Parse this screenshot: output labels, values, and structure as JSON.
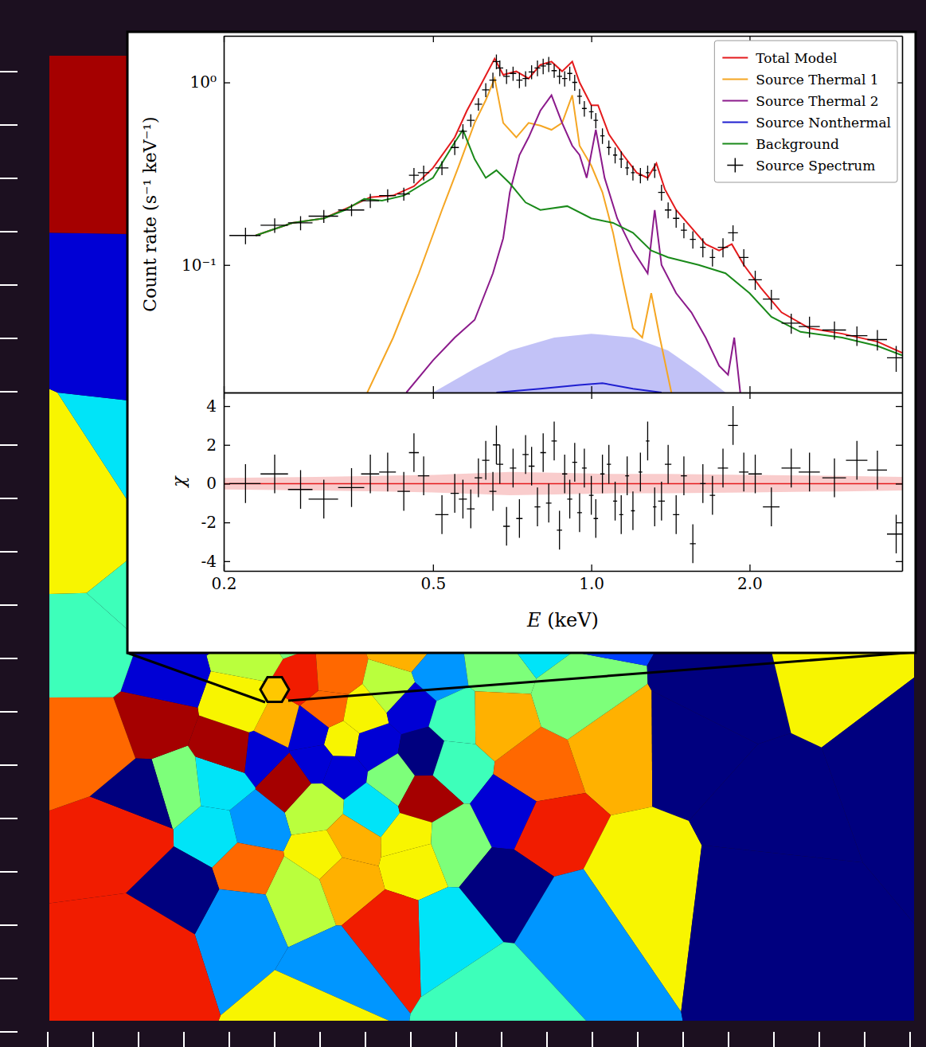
{
  "chart_data": [
    {
      "type": "line",
      "y_label": "Count rate (s⁻¹ keV⁻¹)",
      "log": true,
      "xlim": [
        0.2,
        3.9
      ],
      "ylim": [
        0.02,
        1.8
      ],
      "xticks": [
        0.2,
        0.5,
        {
          "value": 1,
          "label": "1.0"
        },
        {
          "value": 2,
          "label": "2.0"
        }
      ],
      "yticks": [
        {
          "value": 0.1,
          "label": "10⁻¹"
        },
        {
          "value": 1,
          "label": "10⁰"
        }
      ],
      "tick_labels": "y",
      "legend": "upper right",
      "series": [
        {
          "type": "area",
          "color": "#8f8ff0",
          "x": [
            0.5,
            0.6,
            0.7,
            0.85,
            1.0,
            1.2,
            1.4,
            1.6,
            1.8
          ],
          "lower": [
            0.012,
            0.012,
            0.012,
            0.012,
            0.012,
            0.012,
            0.012,
            0.012,
            0.012
          ],
          "upper": [
            0.02,
            0.027,
            0.034,
            0.04,
            0.042,
            0.04,
            0.034,
            0.026,
            0.02
          ]
        },
        {
          "name": "Total Model",
          "type": "line",
          "color": "#e41a1c",
          "x": [
            0.23,
            0.27,
            0.31,
            0.35,
            0.38,
            0.42,
            0.46,
            0.5,
            0.55,
            0.58,
            0.62,
            0.655,
            0.68,
            0.72,
            0.76,
            0.8,
            0.84,
            0.88,
            0.92,
            0.95,
            1.0,
            1.03,
            1.08,
            1.15,
            1.22,
            1.28,
            1.33,
            1.38,
            1.45,
            1.55,
            1.65,
            1.75,
            1.85,
            1.95,
            2.1,
            2.3,
            2.6,
            3.0,
            3.5,
            3.9
          ],
          "values": [
            0.145,
            0.17,
            0.18,
            0.21,
            0.235,
            0.24,
            0.27,
            0.34,
            0.5,
            0.7,
            1.0,
            1.35,
            1.1,
            1.15,
            1.05,
            1.25,
            1.3,
            1.15,
            1.3,
            1.0,
            0.75,
            0.75,
            0.52,
            0.4,
            0.32,
            0.3,
            0.36,
            0.26,
            0.2,
            0.16,
            0.13,
            0.12,
            0.13,
            0.1,
            0.075,
            0.055,
            0.045,
            0.042,
            0.038,
            0.033
          ]
        },
        {
          "name": "Source Thermal 1",
          "type": "line",
          "color": "#f5a623",
          "x": [
            0.375,
            0.42,
            0.47,
            0.52,
            0.56,
            0.6,
            0.63,
            0.655,
            0.68,
            0.72,
            0.76,
            0.8,
            0.84,
            0.88,
            0.92,
            0.95,
            1.0,
            1.05,
            1.1,
            1.15,
            1.2,
            1.25,
            1.3,
            1.35,
            1.42
          ],
          "values": [
            0.02,
            0.04,
            0.09,
            0.2,
            0.35,
            0.6,
            0.8,
            1.05,
            0.6,
            0.5,
            0.6,
            0.58,
            0.55,
            0.6,
            0.85,
            0.45,
            0.35,
            0.25,
            0.15,
            0.08,
            0.045,
            0.04,
            0.07,
            0.04,
            0.02
          ]
        },
        {
          "name": "Source Thermal 2",
          "type": "line",
          "color": "#8b1a8b",
          "x": [
            0.445,
            0.5,
            0.55,
            0.6,
            0.65,
            0.68,
            0.7,
            0.73,
            0.76,
            0.8,
            0.84,
            0.88,
            0.92,
            0.95,
            0.98,
            1.02,
            1.06,
            1.12,
            1.2,
            1.28,
            1.32,
            1.36,
            1.45,
            1.55,
            1.65,
            1.75,
            1.82,
            1.87,
            1.92
          ],
          "values": [
            0.02,
            0.03,
            0.04,
            0.05,
            0.09,
            0.14,
            0.25,
            0.4,
            0.5,
            0.7,
            0.85,
            0.6,
            0.45,
            0.4,
            0.3,
            0.55,
            0.3,
            0.18,
            0.12,
            0.09,
            0.2,
            0.1,
            0.07,
            0.055,
            0.04,
            0.028,
            0.025,
            0.04,
            0.02
          ]
        },
        {
          "name": "Source Nonthermal",
          "type": "line",
          "color": "#1f1fd0",
          "x": [
            0.66,
            0.8,
            0.95,
            1.05,
            1.2,
            1.36
          ],
          "values": [
            0.02,
            0.021,
            0.022,
            0.0225,
            0.021,
            0.02
          ]
        },
        {
          "name": "Background",
          "type": "line",
          "color": "#1a8a1a",
          "x": [
            0.23,
            0.27,
            0.31,
            0.34,
            0.37,
            0.4,
            0.44,
            0.5,
            0.55,
            0.57,
            0.6,
            0.63,
            0.66,
            0.7,
            0.75,
            0.8,
            0.9,
            1.0,
            1.1,
            1.2,
            1.3,
            1.4,
            1.6,
            1.8,
            2.0,
            2.2,
            2.5,
            3.0,
            3.5,
            3.9
          ],
          "values": [
            0.145,
            0.17,
            0.18,
            0.2,
            0.23,
            0.225,
            0.24,
            0.3,
            0.47,
            0.55,
            0.38,
            0.3,
            0.33,
            0.28,
            0.22,
            0.2,
            0.21,
            0.18,
            0.17,
            0.15,
            0.12,
            0.11,
            0.1,
            0.09,
            0.07,
            0.052,
            0.043,
            0.04,
            0.036,
            0.032
          ]
        },
        {
          "name": "Source Spectrum",
          "type": "scatter",
          "color": "#000000",
          "marker": "plus",
          "x": [
            0.22,
            0.25,
            0.28,
            0.31,
            0.35,
            0.38,
            0.41,
            0.44,
            0.46,
            0.48,
            0.52,
            0.55,
            0.57,
            0.59,
            0.61,
            0.63,
            0.65,
            0.66,
            0.67,
            0.69,
            0.71,
            0.73,
            0.75,
            0.77,
            0.79,
            0.81,
            0.83,
            0.85,
            0.87,
            0.89,
            0.91,
            0.93,
            0.95,
            0.97,
            1.0,
            1.02,
            1.05,
            1.08,
            1.11,
            1.14,
            1.17,
            1.2,
            1.24,
            1.28,
            1.32,
            1.36,
            1.4,
            1.45,
            1.5,
            1.56,
            1.63,
            1.7,
            1.78,
            1.86,
            1.95,
            2.05,
            2.2,
            2.4,
            2.6,
            2.9,
            3.2,
            3.5,
            3.8
          ],
          "values": [
            0.145,
            0.165,
            0.17,
            0.185,
            0.2,
            0.225,
            0.24,
            0.245,
            0.31,
            0.32,
            0.34,
            0.44,
            0.54,
            0.62,
            0.76,
            0.91,
            1.03,
            1.3,
            1.2,
            1.08,
            1.12,
            1.03,
            1.05,
            1.14,
            1.2,
            1.23,
            1.26,
            1.16,
            1.08,
            1.05,
            1.12,
            1.0,
            0.84,
            0.72,
            0.69,
            0.62,
            0.51,
            0.44,
            0.4,
            0.38,
            0.34,
            0.32,
            0.31,
            0.32,
            0.33,
            0.25,
            0.2,
            0.18,
            0.155,
            0.138,
            0.125,
            0.11,
            0.125,
            0.15,
            0.11,
            0.083,
            0.065,
            0.048,
            0.046,
            0.044,
            0.041,
            0.039,
            0.031
          ],
          "errors": [
            0.015,
            0.015,
            0.015,
            0.015,
            0.015,
            0.02,
            0.02,
            0.02,
            0.03,
            0.03,
            0.03,
            0.04,
            0.05,
            0.05,
            0.06,
            0.08,
            0.1,
            0.12,
            0.12,
            0.1,
            0.1,
            0.1,
            0.1,
            0.1,
            0.12,
            0.12,
            0.12,
            0.1,
            0.1,
            0.1,
            0.1,
            0.1,
            0.08,
            0.07,
            0.06,
            0.06,
            0.05,
            0.04,
            0.04,
            0.04,
            0.03,
            0.03,
            0.03,
            0.03,
            0.03,
            0.025,
            0.02,
            0.02,
            0.015,
            0.015,
            0.015,
            0.012,
            0.015,
            0.015,
            0.012,
            0.01,
            0.008,
            0.006,
            0.006,
            0.005,
            0.005,
            0.005,
            0.005
          ],
          "xerr": [
            0.015,
            0.015,
            0.015,
            0.02,
            0.02,
            0.015,
            0.015,
            0.012,
            0.01,
            0.012,
            0.015,
            0.01,
            0.01,
            0.01,
            0.01,
            0.01,
            0.01,
            0.01,
            0.01,
            0.01,
            0.01,
            0.01,
            0.01,
            0.01,
            0.01,
            0.01,
            0.01,
            0.01,
            0.01,
            0.01,
            0.01,
            0.01,
            0.01,
            0.01,
            0.01,
            0.01,
            0.01,
            0.01,
            0.01,
            0.01,
            0.01,
            0.01,
            0.01,
            0.01,
            0.01,
            0.02,
            0.02,
            0.02,
            0.02,
            0.02,
            0.02,
            0.02,
            0.04,
            0.04,
            0.04,
            0.06,
            0.08,
            0.1,
            0.12,
            0.15,
            0.15,
            0.15,
            0.15
          ]
        }
      ]
    },
    {
      "type": "scatter",
      "x_label": "E (keV)",
      "y_label": "χ",
      "log": "x",
      "xlim": [
        0.2,
        3.9
      ],
      "ylim": [
        -4.5,
        4.7
      ],
      "xticks": [
        0.2,
        0.5,
        {
          "value": 1,
          "label": "1.0"
        },
        {
          "value": 2,
          "label": "2.0"
        }
      ],
      "yticks": [
        -4,
        -2,
        0,
        2,
        4
      ],
      "series": [
        {
          "type": "area",
          "color": "#f4a3a3",
          "x": [
            0.2,
            0.3,
            0.5,
            0.7,
            0.9,
            1.1,
            1.4,
            2.0,
            3.0,
            3.9
          ],
          "lower": [
            -0.3,
            -0.35,
            -0.45,
            -0.6,
            -0.55,
            -0.5,
            -0.5,
            -0.45,
            -0.4,
            -0.35
          ],
          "upper": [
            0.3,
            0.35,
            0.45,
            0.6,
            0.55,
            0.5,
            0.5,
            0.45,
            0.4,
            0.35
          ]
        },
        {
          "type": "line",
          "color": "#e41a1c",
          "x": [
            0.2,
            3.9
          ],
          "values": [
            0,
            0
          ]
        },
        {
          "type": "scatter",
          "color": "#000000",
          "marker": "plus",
          "x": [
            0.22,
            0.25,
            0.28,
            0.31,
            0.35,
            0.38,
            0.41,
            0.44,
            0.46,
            0.48,
            0.52,
            0.55,
            0.57,
            0.59,
            0.61,
            0.63,
            0.65,
            0.66,
            0.67,
            0.69,
            0.71,
            0.73,
            0.75,
            0.77,
            0.79,
            0.81,
            0.83,
            0.85,
            0.87,
            0.89,
            0.91,
            0.93,
            0.95,
            0.97,
            1.0,
            1.02,
            1.05,
            1.08,
            1.11,
            1.14,
            1.17,
            1.2,
            1.24,
            1.28,
            1.32,
            1.36,
            1.4,
            1.45,
            1.5,
            1.56,
            1.63,
            1.7,
            1.78,
            1.86,
            1.95,
            2.05,
            2.2,
            2.4,
            2.6,
            2.9,
            3.2,
            3.5,
            3.8
          ],
          "values": [
            0.0,
            0.5,
            -0.3,
            -0.8,
            -0.2,
            0.5,
            0.6,
            -0.4,
            1.6,
            0.4,
            -1.6,
            -0.5,
            -0.8,
            -1.3,
            0.3,
            1.2,
            -0.4,
            2.0,
            1.0,
            -2.2,
            0.8,
            -1.8,
            1.5,
            0.9,
            -1.2,
            1.6,
            -1.0,
            2.2,
            -2.4,
            0.5,
            -0.8,
            1.1,
            -1.5,
            0.8,
            -0.6,
            -1.8,
            0.5,
            1.0,
            -0.9,
            -1.6,
            0.4,
            -1.4,
            0.6,
            2.2,
            -1.2,
            -0.9,
            1.0,
            -1.6,
            0.4,
            -3.1,
            0.0,
            -0.6,
            0.8,
            3.0,
            0.6,
            0.5,
            -1.2,
            0.8,
            0.6,
            0.3,
            1.2,
            0.7,
            -2.6
          ],
          "errors": [
            1,
            1,
            1,
            1,
            1,
            1,
            1,
            1,
            1,
            1,
            1,
            1,
            1,
            1,
            1,
            1,
            1,
            1,
            1,
            1,
            1,
            1,
            1,
            1,
            1,
            1,
            1,
            1,
            1,
            1,
            1,
            1,
            1,
            1,
            1,
            1,
            1,
            1,
            1,
            1,
            1,
            1,
            1,
            1,
            1,
            1,
            1,
            1,
            1,
            1,
            1,
            1,
            1,
            1,
            1,
            1,
            1,
            1,
            1,
            1,
            1,
            1,
            1
          ],
          "xerr": [
            0.015,
            0.015,
            0.015,
            0.02,
            0.02,
            0.015,
            0.015,
            0.012,
            0.01,
            0.012,
            0.015,
            0.01,
            0.01,
            0.01,
            0.01,
            0.01,
            0.01,
            0.01,
            0.01,
            0.01,
            0.01,
            0.01,
            0.01,
            0.01,
            0.01,
            0.01,
            0.01,
            0.01,
            0.01,
            0.01,
            0.01,
            0.01,
            0.01,
            0.01,
            0.01,
            0.01,
            0.01,
            0.01,
            0.01,
            0.01,
            0.01,
            0.01,
            0.01,
            0.01,
            0.01,
            0.02,
            0.02,
            0.02,
            0.02,
            0.02,
            0.02,
            0.02,
            0.04,
            0.04,
            0.04,
            0.06,
            0.08,
            0.1,
            0.12,
            0.15,
            0.15,
            0.15,
            0.15
          ]
        }
      ]
    }
  ]
}
